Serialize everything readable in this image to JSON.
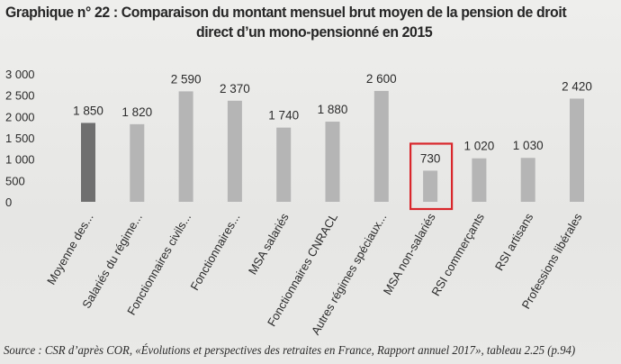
{
  "title_lines": [
    "Graphique n° 22 : Comparaison du montant mensuel brut moyen de la pension de droit",
    "direct d’un mono-pensionné en 2015"
  ],
  "source": "Source : CSR d’après COR, «Évolutions et perspectives des retraites en France, Rapport annuel 2017», tableau 2.25 (p.94)",
  "colors": {
    "background": "#ebebea",
    "bar_highlight": "#6f6f6f",
    "bar": "#b5b5b5",
    "text": "#2b2b2b",
    "callout_box": "#d9262b"
  },
  "chart_data": {
    "type": "bar",
    "title": "",
    "xlabel": "",
    "ylabel": "",
    "ylim": [
      0,
      3000
    ],
    "yticks": [
      0,
      500,
      1000,
      1500,
      2000,
      2500,
      3000
    ],
    "ytick_labels": [
      "0",
      "500",
      "1 000",
      "1 500",
      "2 000",
      "2 500",
      "3 000"
    ],
    "grid": false,
    "categories": [
      "Moyenne des...",
      "Salariés du régime...",
      "Fonctionnaires civils...",
      "Fonctionnaires...",
      "MSA salariés",
      "Fonctionnaires CNRACL",
      "Autres régimes spéciaux...",
      "MSA non-salariés",
      "RSI commerçants",
      "RSI artisans",
      "Professions libérales"
    ],
    "values": [
      1850,
      1820,
      2590,
      2370,
      1740,
      1880,
      2600,
      730,
      1020,
      1030,
      2420
    ],
    "value_labels": [
      "1 850",
      "1 820",
      "2 590",
      "2 370",
      "1 740",
      "1 880",
      "2 600",
      "730",
      "1 020",
      "1 030",
      "2 420"
    ],
    "highlighted_bar_index": 0,
    "boxed_index": 7
  }
}
